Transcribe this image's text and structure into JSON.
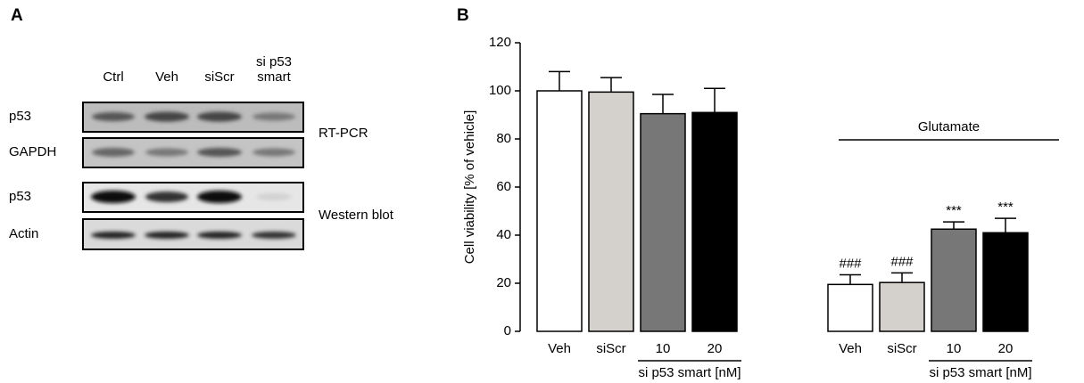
{
  "panel_a": {
    "panel_label": "A",
    "lanes": [
      "Ctrl",
      "Veh",
      "siScr",
      "si p53 smart"
    ],
    "rows": [
      "p53",
      "GAPDH",
      "p53",
      "Actin"
    ],
    "methods": [
      "RT-PCR",
      "Western blot"
    ]
  },
  "chart_data": {
    "type": "bar",
    "panel_label": "B",
    "categories": [
      "Veh",
      "siScr",
      "10",
      "20",
      "Veh",
      "siScr",
      "10",
      "20"
    ],
    "values": [
      100,
      99.5,
      90.5,
      91,
      19.5,
      20.3,
      42.5,
      41
    ],
    "errors": [
      8,
      6,
      8,
      10,
      4,
      4,
      3,
      6
    ],
    "colors": [
      "#ffffff",
      "#d4d1cd",
      "#777777",
      "#000000",
      "#ffffff",
      "#d4d1cd",
      "#777777",
      "#000000"
    ],
    "significance": [
      null,
      null,
      null,
      null,
      "###",
      "###",
      "***",
      "***"
    ],
    "bracket_labels": [
      "si p53 smart [nM]",
      "si p53 smart [nM]"
    ],
    "span_label": "Glutamate",
    "ylabel": "Cell viability [% of vehicle]",
    "ylim": [
      0,
      120
    ],
    "yticks": [
      0,
      20,
      40,
      60,
      80,
      100,
      120
    ]
  }
}
